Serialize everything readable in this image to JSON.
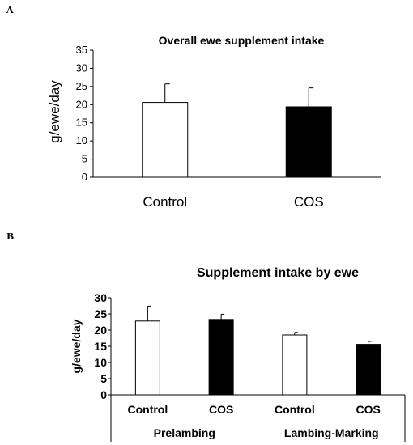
{
  "panels": {
    "a": "A",
    "b": "B"
  },
  "chart_data": [
    {
      "type": "bar",
      "title": "Overall ewe supplement intake",
      "xlabel": "",
      "ylabel": "g/ewe/day",
      "ylim": [
        0,
        35
      ],
      "yticks": [
        "35",
        "30",
        "25",
        "20",
        "15",
        "10",
        "5",
        "0"
      ],
      "categories": [
        "Control",
        "COS"
      ],
      "values": [
        20.6,
        19.4
      ],
      "errors": [
        5.1,
        5.2
      ],
      "colors": [
        "#ffffff",
        "#000000"
      ],
      "grid": false
    },
    {
      "type": "bar",
      "title": "Supplement intake by ewe",
      "xlabel": "",
      "ylabel": "g/ewe/day",
      "ylim": [
        0,
        30
      ],
      "yticks": [
        "30",
        "25",
        "20",
        "15",
        "10",
        "5",
        "0"
      ],
      "groups": [
        "Prelambing",
        "Lambing-Marking"
      ],
      "categories": [
        "Control",
        "COS",
        "Control",
        "COS"
      ],
      "values": [
        22.8,
        23.3,
        18.5,
        15.6
      ],
      "errors": [
        4.6,
        1.6,
        0.8,
        0.9
      ],
      "colors": [
        "#ffffff",
        "#000000",
        "#ffffff",
        "#000000"
      ],
      "grid": false
    }
  ]
}
